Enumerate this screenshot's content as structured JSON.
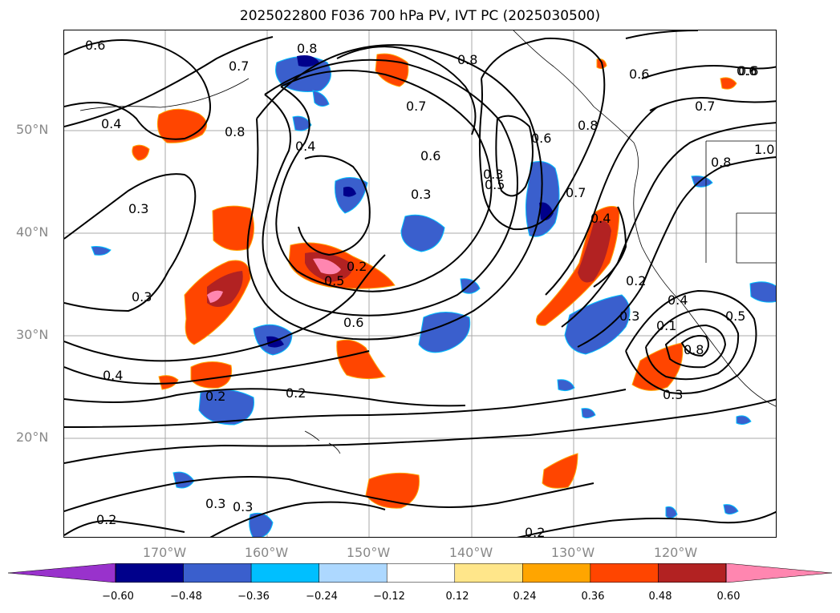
{
  "title": "2025022800 F036 700 hPa PV, IVT PC (2025030500)",
  "lat_labels": [
    "50°N",
    "40°N",
    "30°N",
    "20°N"
  ],
  "lon_labels": [
    "170°W",
    "160°W",
    "150°W",
    "140°W",
    "130°W",
    "120°W"
  ],
  "colorbar": {
    "colors": [
      "#9932cc",
      "#00008b",
      "#3a5fcd",
      "#00bfff",
      "#add8ff",
      "#ffffff",
      "#ffe68a",
      "#ffa500",
      "#ff4500",
      "#b22222",
      "#ff86b0"
    ],
    "ticks": [
      "−0.60",
      "−0.48",
      "−0.36",
      "−0.24",
      "−0.12",
      "0.12",
      "0.24",
      "0.36",
      "0.48",
      "0.60"
    ]
  },
  "contour_labels": [
    "0.6",
    "0.6",
    "0.8",
    "0.7",
    "0.4",
    "0.8",
    "0.3",
    "0.3",
    "0.4",
    "0.4",
    "0.3",
    "0.2",
    "0.5",
    "0.6",
    "0.7",
    "0.6",
    "0.3",
    "0.5",
    "0.6",
    "0.8",
    "0.7",
    "0.4",
    "0.8",
    "0.2",
    "0.3",
    "0.6",
    "0.7",
    "0.8",
    "1.0",
    "0.6",
    "0.4",
    "0.1",
    "0.8",
    "0.5",
    "0.3",
    "0.2",
    "0.2",
    "0.3",
    "0.2",
    "0.2",
    "0.3"
  ]
}
